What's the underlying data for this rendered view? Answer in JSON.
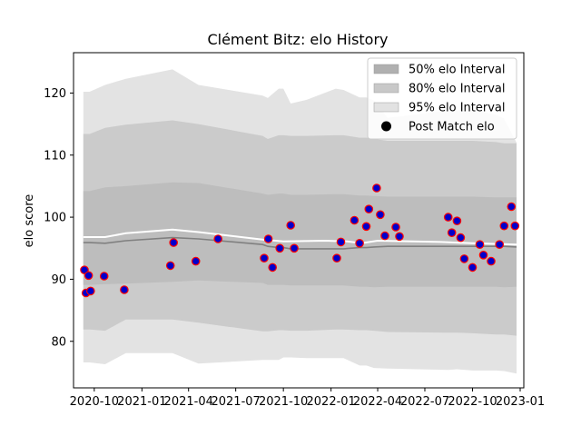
{
  "chart_data": {
    "type": "line",
    "title": "Clément Bitz: elo History",
    "xlabel": "",
    "ylabel": "elo score",
    "x_ticks": [
      "2020-10",
      "2021-01",
      "2021-04",
      "2021-07",
      "2021-10",
      "2022-01",
      "2022-04",
      "2022-07",
      "2022-10",
      "2023-01"
    ],
    "y_ticks": [
      80,
      90,
      100,
      110,
      120
    ],
    "ylim": [
      72.5,
      126.5
    ],
    "xlim": [
      "2020-08-22",
      "2023-01-08"
    ],
    "grid": false,
    "legend_position": "top-right",
    "legend": [
      {
        "label": "50% elo Interval",
        "kind": "patch",
        "color": "#b0b0b0"
      },
      {
        "label": "80% elo Interval",
        "kind": "patch",
        "color": "#c8c8c8"
      },
      {
        "label": "95% elo Interval",
        "kind": "patch",
        "color": "#e2e2e2"
      },
      {
        "label": "Post Match elo",
        "kind": "marker",
        "color": "#000000"
      }
    ],
    "colors": {
      "band_95": "#e3e3e3",
      "band_80": "#cbcbcb",
      "band_50": "#bdbdbd",
      "median_line": "#808080",
      "mean_line": "#ffffff",
      "point_fill": "#0000cc",
      "point_edge": "#ff0000"
    },
    "bands": {
      "x": [
        "2020-09-10",
        "2020-09-22",
        "2020-10-22",
        "2020-12-01",
        "2021-03-01",
        "2021-04-20",
        "2021-08-22",
        "2021-09-01",
        "2021-09-22",
        "2021-10-01",
        "2021-10-15",
        "2021-11-15",
        "2022-01-10",
        "2022-01-25",
        "2022-02-25",
        "2022-03-10",
        "2022-03-25",
        "2022-04-20",
        "2022-08-15",
        "2022-09-01",
        "2022-10-01",
        "2022-11-15",
        "2022-12-01",
        "2022-12-25"
      ],
      "p95_hi": [
        120.2,
        120.2,
        121.3,
        122.3,
        123.8,
        121.3,
        119.6,
        119.2,
        120.7,
        120.7,
        118.3,
        118.9,
        120.7,
        120.5,
        119.3,
        119.3,
        118.8,
        116.0,
        117.2,
        117.2,
        117.3,
        116.5,
        115.9,
        112.0
      ],
      "p80_hi": [
        113.4,
        113.4,
        114.4,
        114.9,
        115.6,
        115.0,
        113.1,
        112.6,
        113.2,
        113.2,
        113.1,
        113.1,
        113.2,
        113.2,
        112.8,
        112.8,
        112.6,
        112.3,
        112.3,
        112.3,
        112.3,
        112.1,
        111.9,
        111.9
      ],
      "p50_hi": [
        104.2,
        104.2,
        104.8,
        105.0,
        105.6,
        105.5,
        103.8,
        103.6,
        103.8,
        103.8,
        103.6,
        103.6,
        103.7,
        103.7,
        103.5,
        103.5,
        103.4,
        103.3,
        103.3,
        103.3,
        103.3,
        103.2,
        103.2,
        103.2
      ],
      "median": [
        95.9,
        95.9,
        95.8,
        96.2,
        96.7,
        96.5,
        95.6,
        95.3,
        95.1,
        95.1,
        94.9,
        94.9,
        94.9,
        94.9,
        95.1,
        95.1,
        95.2,
        95.3,
        95.3,
        95.3,
        95.3,
        95.3,
        95.3,
        95.2
      ],
      "p50_lo": [
        89.1,
        89.1,
        89.2,
        89.3,
        89.6,
        89.8,
        89.4,
        89.1,
        89.1,
        89.1,
        89.0,
        89.0,
        89.0,
        89.0,
        88.8,
        88.8,
        88.7,
        88.8,
        88.8,
        88.8,
        88.8,
        88.8,
        88.7,
        88.8
      ],
      "p80_lo": [
        81.9,
        81.9,
        81.7,
        83.5,
        83.5,
        83.0,
        81.6,
        81.6,
        81.8,
        81.8,
        81.7,
        81.7,
        81.9,
        81.9,
        81.8,
        81.8,
        81.7,
        81.5,
        81.4,
        81.4,
        81.3,
        81.1,
        81.1,
        80.9
      ],
      "p95_lo": [
        76.6,
        76.6,
        76.3,
        78.1,
        78.1,
        76.4,
        77.0,
        77.0,
        77.0,
        77.4,
        77.4,
        77.3,
        77.3,
        77.3,
        76.1,
        76.1,
        75.7,
        75.6,
        75.4,
        75.5,
        75.3,
        75.3,
        75.2,
        74.8
      ]
    },
    "mean_line": {
      "x": [
        "2020-09-10",
        "2020-10-22",
        "2020-12-01",
        "2021-03-01",
        "2021-04-20",
        "2021-08-22",
        "2021-10-01",
        "2021-12-20",
        "2022-02-01",
        "2022-03-01",
        "2022-04-01",
        "2022-08-01",
        "2022-10-01",
        "2022-12-25"
      ],
      "y": [
        96.8,
        96.8,
        97.4,
        98.0,
        97.6,
        96.4,
        96.1,
        96.2,
        96.1,
        95.8,
        96.2,
        96.0,
        95.8,
        95.6
      ]
    },
    "points": {
      "x": [
        "2020-09-12",
        "2020-09-15",
        "2020-09-20",
        "2020-09-24",
        "2020-10-20",
        "2020-11-28",
        "2021-02-25",
        "2021-03-03",
        "2021-04-15",
        "2021-05-28",
        "2021-08-25",
        "2021-09-02",
        "2021-09-10",
        "2021-09-24",
        "2021-10-15",
        "2021-10-22",
        "2022-01-12",
        "2022-01-20",
        "2022-02-15",
        "2022-02-25",
        "2022-03-10",
        "2022-03-15",
        "2022-03-30",
        "2022-04-06",
        "2022-04-15",
        "2022-05-06",
        "2022-05-13",
        "2022-08-15",
        "2022-08-22",
        "2022-09-01",
        "2022-09-08",
        "2022-09-15",
        "2022-10-01",
        "2022-10-15",
        "2022-10-22",
        "2022-11-06",
        "2022-11-22",
        "2022-12-01",
        "2022-12-15",
        "2022-12-22"
      ],
      "y": [
        91.5,
        87.8,
        90.6,
        88.1,
        90.5,
        88.3,
        92.2,
        95.9,
        92.9,
        96.5,
        93.4,
        96.5,
        91.9,
        95.0,
        98.7,
        95.0,
        93.4,
        96.0,
        99.5,
        95.8,
        98.5,
        101.3,
        104.7,
        100.4,
        97.0,
        98.4,
        96.9,
        100.0,
        97.5,
        99.4,
        96.7,
        93.3,
        91.9,
        95.6,
        93.9,
        92.9,
        95.6,
        98.6,
        101.7,
        98.6
      ]
    }
  }
}
